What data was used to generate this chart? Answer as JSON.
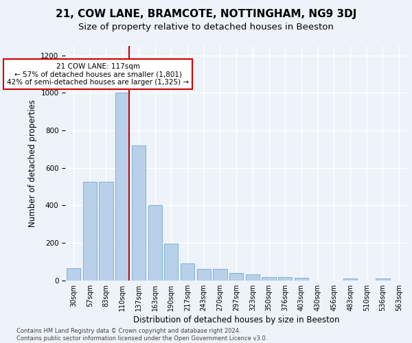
{
  "title": "21, COW LANE, BRAMCOTE, NOTTINGHAM, NG9 3DJ",
  "subtitle": "Size of property relative to detached houses in Beeston",
  "xlabel": "Distribution of detached houses by size in Beeston",
  "ylabel": "Number of detached properties",
  "categories": [
    "30sqm",
    "57sqm",
    "83sqm",
    "110sqm",
    "137sqm",
    "163sqm",
    "190sqm",
    "217sqm",
    "243sqm",
    "270sqm",
    "297sqm",
    "323sqm",
    "350sqm",
    "376sqm",
    "403sqm",
    "430sqm",
    "456sqm",
    "483sqm",
    "510sqm",
    "536sqm",
    "563sqm"
  ],
  "values": [
    65,
    525,
    525,
    1000,
    720,
    400,
    197,
    90,
    60,
    60,
    38,
    32,
    18,
    18,
    15,
    0,
    0,
    12,
    0,
    12,
    0
  ],
  "bar_color": "#b8d0ea",
  "bar_edgecolor": "#6fa8d6",
  "vline_index": 3,
  "vline_color": "#cc0000",
  "annotation_text": "21 COW LANE: 117sqm\n← 57% of detached houses are smaller (1,801)\n42% of semi-detached houses are larger (1,325) →",
  "annotation_box_color": "#ffffff",
  "annotation_box_edgecolor": "#cc0000",
  "footer_text": "Contains HM Land Registry data © Crown copyright and database right 2024.\nContains public sector information licensed under the Open Government Licence v3.0.",
  "ylim": [
    0,
    1250
  ],
  "yticks": [
    0,
    200,
    400,
    600,
    800,
    1000,
    1200
  ],
  "background_color": "#eef2f9",
  "plot_background_color": "#eef2f9",
  "title_fontsize": 11,
  "subtitle_fontsize": 9.5,
  "tick_fontsize": 7,
  "ylabel_fontsize": 8.5,
  "xlabel_fontsize": 8.5,
  "annotation_fontsize": 7.5,
  "footer_fontsize": 6
}
